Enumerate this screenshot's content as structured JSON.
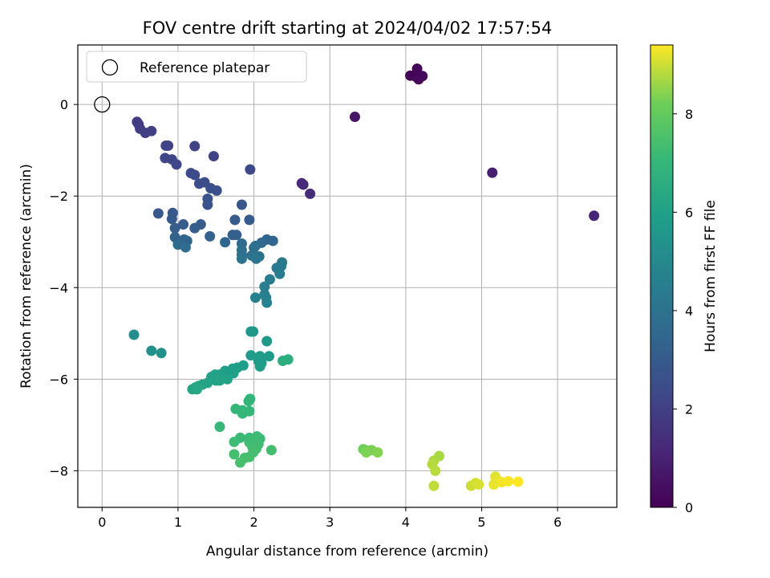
{
  "chart_data": {
    "type": "scatter",
    "title": "FOV centre drift starting at 2024/04/02 17:57:54",
    "xlabel": "Angular distance from reference (arcmin)",
    "ylabel": "Rotation from reference (arcmin)",
    "xlim": [
      -0.32,
      6.78
    ],
    "ylim": [
      -8.8,
      1.3
    ],
    "xticks": [
      "0",
      "1",
      "2",
      "3",
      "4",
      "5",
      "6"
    ],
    "yticks": [
      "0",
      "−2",
      "−4",
      "−6",
      "−8"
    ],
    "grid": true,
    "legend": {
      "placement": "upper-left",
      "entries": [
        "Reference platepar"
      ]
    },
    "reference_point": {
      "x": 0,
      "y": 0
    },
    "colorbar": {
      "label": "Hours from first FF file",
      "range": [
        0,
        9.4
      ],
      "ticks": [
        "0",
        "2",
        "4",
        "6",
        "8"
      ],
      "colormap": "viridis"
    },
    "points": [
      {
        "x": 4.15,
        "y": 0.78,
        "t": 0.05
      },
      {
        "x": 4.06,
        "y": 0.63,
        "t": 0.1
      },
      {
        "x": 4.13,
        "y": 0.61,
        "t": 0.15
      },
      {
        "x": 4.22,
        "y": 0.62,
        "t": 0.2
      },
      {
        "x": 4.17,
        "y": 0.55,
        "t": 0.25
      },
      {
        "x": 3.33,
        "y": -0.27,
        "t": 0.6
      },
      {
        "x": 5.14,
        "y": -1.49,
        "t": 0.9
      },
      {
        "x": 6.48,
        "y": -2.43,
        "t": 1.1
      },
      {
        "x": 2.63,
        "y": -1.72,
        "t": 1.2
      },
      {
        "x": 2.65,
        "y": -1.75,
        "t": 1.25
      },
      {
        "x": 2.74,
        "y": -1.95,
        "t": 1.3
      },
      {
        "x": 0.46,
        "y": -0.38,
        "t": 1.9
      },
      {
        "x": 0.48,
        "y": -0.43,
        "t": 1.9
      },
      {
        "x": 0.5,
        "y": -0.53,
        "t": 1.95
      },
      {
        "x": 0.57,
        "y": -0.62,
        "t": 2.0
      },
      {
        "x": 0.65,
        "y": -0.58,
        "t": 2.0
      },
      {
        "x": 0.84,
        "y": -0.9,
        "t": 2.1
      },
      {
        "x": 0.87,
        "y": -0.9,
        "t": 2.1
      },
      {
        "x": 1.22,
        "y": -0.91,
        "t": 2.1
      },
      {
        "x": 1.47,
        "y": -1.13,
        "t": 2.15
      },
      {
        "x": 0.83,
        "y": -1.17,
        "t": 2.2
      },
      {
        "x": 0.92,
        "y": -1.2,
        "t": 2.2
      },
      {
        "x": 0.98,
        "y": -1.31,
        "t": 2.25
      },
      {
        "x": 1.95,
        "y": -1.42,
        "t": 2.3
      },
      {
        "x": 1.17,
        "y": -1.5,
        "t": 2.35
      },
      {
        "x": 1.22,
        "y": -1.54,
        "t": 2.4
      },
      {
        "x": 1.35,
        "y": -1.7,
        "t": 2.45
      },
      {
        "x": 1.28,
        "y": -1.73,
        "t": 2.5
      },
      {
        "x": 1.43,
        "y": -1.83,
        "t": 2.55
      },
      {
        "x": 1.51,
        "y": -1.88,
        "t": 2.6
      },
      {
        "x": 1.39,
        "y": -2.06,
        "t": 2.7
      },
      {
        "x": 1.39,
        "y": -2.19,
        "t": 2.75
      },
      {
        "x": 1.84,
        "y": -2.19,
        "t": 2.8
      },
      {
        "x": 0.74,
        "y": -2.38,
        "t": 2.85
      },
      {
        "x": 0.93,
        "y": -2.37,
        "t": 2.9
      },
      {
        "x": 0.92,
        "y": -2.5,
        "t": 2.95
      },
      {
        "x": 1.75,
        "y": -2.52,
        "t": 3.0
      },
      {
        "x": 1.94,
        "y": -2.52,
        "t": 3.0
      },
      {
        "x": 1.07,
        "y": -2.62,
        "t": 3.05
      },
      {
        "x": 1.3,
        "y": -2.62,
        "t": 3.1
      },
      {
        "x": 0.96,
        "y": -2.7,
        "t": 3.1
      },
      {
        "x": 1.22,
        "y": -2.7,
        "t": 3.15
      },
      {
        "x": 1.72,
        "y": -2.85,
        "t": 3.2
      },
      {
        "x": 1.77,
        "y": -2.85,
        "t": 3.2
      },
      {
        "x": 1.42,
        "y": -2.88,
        "t": 3.25
      },
      {
        "x": 0.96,
        "y": -2.9,
        "t": 3.3
      },
      {
        "x": 1.08,
        "y": -2.95,
        "t": 3.3
      },
      {
        "x": 1.12,
        "y": -2.98,
        "t": 3.35
      },
      {
        "x": 2.17,
        "y": -2.95,
        "t": 3.4
      },
      {
        "x": 2.25,
        "y": -2.98,
        "t": 3.45
      },
      {
        "x": 1.62,
        "y": -3.01,
        "t": 3.5
      },
      {
        "x": 2.1,
        "y": -3.02,
        "t": 3.55
      },
      {
        "x": 1.84,
        "y": -3.04,
        "t": 3.6
      },
      {
        "x": 1.0,
        "y": -3.06,
        "t": 3.65
      },
      {
        "x": 1.1,
        "y": -3.12,
        "t": 3.7
      },
      {
        "x": 2.02,
        "y": -3.09,
        "t": 3.75
      },
      {
        "x": 2.0,
        "y": -3.13,
        "t": 3.8
      },
      {
        "x": 1.84,
        "y": -3.18,
        "t": 3.85
      },
      {
        "x": 1.84,
        "y": -3.28,
        "t": 3.9
      },
      {
        "x": 1.97,
        "y": -3.3,
        "t": 3.95
      },
      {
        "x": 2.07,
        "y": -3.32,
        "t": 4.0
      },
      {
        "x": 1.84,
        "y": -3.37,
        "t": 4.05
      },
      {
        "x": 2.03,
        "y": -3.37,
        "t": 4.1
      },
      {
        "x": 2.37,
        "y": -3.45,
        "t": 4.2
      },
      {
        "x": 2.3,
        "y": -3.57,
        "t": 4.3
      },
      {
        "x": 2.36,
        "y": -3.53,
        "t": 4.35
      },
      {
        "x": 2.34,
        "y": -3.7,
        "t": 4.4
      },
      {
        "x": 2.21,
        "y": -3.82,
        "t": 4.45
      },
      {
        "x": 2.14,
        "y": -3.98,
        "t": 4.5
      },
      {
        "x": 2.14,
        "y": -4.15,
        "t": 4.55
      },
      {
        "x": 2.02,
        "y": -4.22,
        "t": 4.6
      },
      {
        "x": 2.16,
        "y": -4.22,
        "t": 4.65
      },
      {
        "x": 2.17,
        "y": -4.33,
        "t": 4.7
      },
      {
        "x": 0.42,
        "y": -5.03,
        "t": 5.2
      },
      {
        "x": 0.65,
        "y": -5.38,
        "t": 5.3
      },
      {
        "x": 0.78,
        "y": -5.43,
        "t": 5.35
      },
      {
        "x": 1.96,
        "y": -4.96,
        "t": 5.6
      },
      {
        "x": 1.99,
        "y": -4.96,
        "t": 5.62
      },
      {
        "x": 2.17,
        "y": -5.17,
        "t": 5.65
      },
      {
        "x": 1.96,
        "y": -5.48,
        "t": 5.7
      },
      {
        "x": 2.08,
        "y": -5.5,
        "t": 5.72
      },
      {
        "x": 2.2,
        "y": -5.5,
        "t": 5.75
      },
      {
        "x": 2.06,
        "y": -5.6,
        "t": 5.78
      },
      {
        "x": 2.1,
        "y": -5.65,
        "t": 5.8
      },
      {
        "x": 2.08,
        "y": -5.72,
        "t": 5.82
      },
      {
        "x": 1.78,
        "y": -5.75,
        "t": 5.85
      },
      {
        "x": 1.86,
        "y": -5.7,
        "t": 5.88
      },
      {
        "x": 1.72,
        "y": -5.77,
        "t": 5.9
      },
      {
        "x": 1.62,
        "y": -5.82,
        "t": 5.92
      },
      {
        "x": 1.73,
        "y": -5.87,
        "t": 5.95
      },
      {
        "x": 1.55,
        "y": -5.9,
        "t": 5.98
      },
      {
        "x": 1.49,
        "y": -5.9,
        "t": 6.0
      },
      {
        "x": 1.44,
        "y": -5.95,
        "t": 6.02
      },
      {
        "x": 1.57,
        "y": -5.98,
        "t": 6.05
      },
      {
        "x": 1.65,
        "y": -6.0,
        "t": 6.08
      },
      {
        "x": 1.5,
        "y": -6.03,
        "t": 6.1
      },
      {
        "x": 1.55,
        "y": -6.03,
        "t": 6.12
      },
      {
        "x": 1.39,
        "y": -6.08,
        "t": 6.15
      },
      {
        "x": 1.32,
        "y": -6.12,
        "t": 6.18
      },
      {
        "x": 1.27,
        "y": -6.15,
        "t": 6.2
      },
      {
        "x": 1.23,
        "y": -6.18,
        "t": 6.22
      },
      {
        "x": 1.19,
        "y": -6.22,
        "t": 6.25
      },
      {
        "x": 1.25,
        "y": -6.22,
        "t": 6.28
      },
      {
        "x": 2.38,
        "y": -5.6,
        "t": 6.6
      },
      {
        "x": 2.45,
        "y": -5.57,
        "t": 6.65
      },
      {
        "x": 1.95,
        "y": -6.43,
        "t": 6.9
      },
      {
        "x": 1.93,
        "y": -6.48,
        "t": 6.95
      },
      {
        "x": 1.76,
        "y": -6.65,
        "t": 7.0
      },
      {
        "x": 1.85,
        "y": -6.68,
        "t": 7.02
      },
      {
        "x": 1.94,
        "y": -6.7,
        "t": 7.04
      },
      {
        "x": 1.85,
        "y": -6.75,
        "t": 7.06
      },
      {
        "x": 1.55,
        "y": -7.04,
        "t": 7.1
      },
      {
        "x": 1.82,
        "y": -7.28,
        "t": 7.15
      },
      {
        "x": 1.94,
        "y": -7.28,
        "t": 7.17
      },
      {
        "x": 2.04,
        "y": -7.25,
        "t": 7.19
      },
      {
        "x": 2.08,
        "y": -7.3,
        "t": 7.21
      },
      {
        "x": 1.74,
        "y": -7.37,
        "t": 7.23
      },
      {
        "x": 1.94,
        "y": -7.38,
        "t": 7.25
      },
      {
        "x": 2.0,
        "y": -7.4,
        "t": 7.27
      },
      {
        "x": 2.06,
        "y": -7.42,
        "t": 7.29
      },
      {
        "x": 1.98,
        "y": -7.48,
        "t": 7.31
      },
      {
        "x": 2.03,
        "y": -7.52,
        "t": 7.33
      },
      {
        "x": 2.23,
        "y": -7.55,
        "t": 7.35
      },
      {
        "x": 1.99,
        "y": -7.6,
        "t": 7.37
      },
      {
        "x": 1.74,
        "y": -7.64,
        "t": 7.39
      },
      {
        "x": 1.88,
        "y": -7.72,
        "t": 7.41
      },
      {
        "x": 1.94,
        "y": -7.7,
        "t": 7.43
      },
      {
        "x": 1.82,
        "y": -7.82,
        "t": 7.45
      },
      {
        "x": 3.44,
        "y": -7.53,
        "t": 8.2
      },
      {
        "x": 3.5,
        "y": -7.56,
        "t": 8.25
      },
      {
        "x": 3.55,
        "y": -7.55,
        "t": 8.3
      },
      {
        "x": 3.48,
        "y": -7.6,
        "t": 8.35
      },
      {
        "x": 3.63,
        "y": -7.6,
        "t": 8.4
      },
      {
        "x": 4.44,
        "y": -7.68,
        "t": 8.7
      },
      {
        "x": 4.37,
        "y": -7.78,
        "t": 8.75
      },
      {
        "x": 4.35,
        "y": -7.86,
        "t": 8.8
      },
      {
        "x": 4.39,
        "y": -8.0,
        "t": 8.85
      },
      {
        "x": 4.37,
        "y": -8.33,
        "t": 8.9
      },
      {
        "x": 4.86,
        "y": -8.33,
        "t": 9.0
      },
      {
        "x": 4.92,
        "y": -8.27,
        "t": 9.05
      },
      {
        "x": 4.96,
        "y": -8.3,
        "t": 9.1
      },
      {
        "x": 5.18,
        "y": -8.13,
        "t": 9.15
      },
      {
        "x": 5.22,
        "y": -8.22,
        "t": 9.2
      },
      {
        "x": 5.16,
        "y": -8.3,
        "t": 9.25
      },
      {
        "x": 5.26,
        "y": -8.25,
        "t": 9.3
      },
      {
        "x": 5.35,
        "y": -8.23,
        "t": 9.35
      },
      {
        "x": 5.48,
        "y": -8.24,
        "t": 9.4
      }
    ]
  }
}
